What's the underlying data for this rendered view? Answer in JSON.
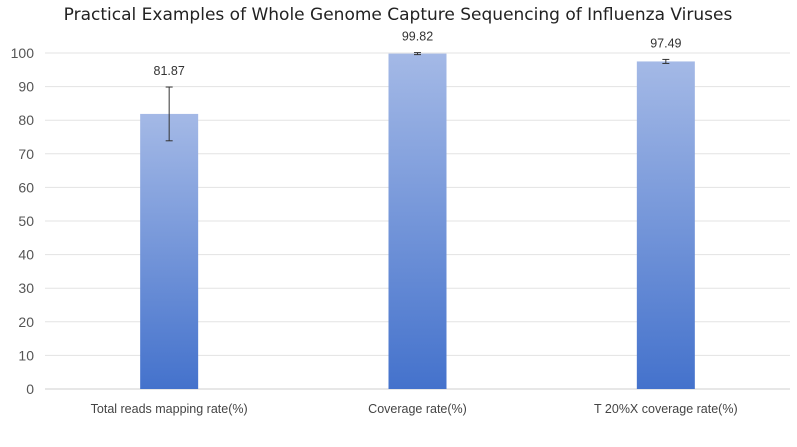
{
  "chart_data": {
    "type": "bar",
    "title": "Practical Examples of Whole Genome Capture Sequencing of Influenza Viruses",
    "xlabel": "",
    "ylabel": "",
    "categories": [
      "Total reads mapping rate(%)",
      "Coverage rate(%)",
      "T 20%X coverage rate(%)"
    ],
    "values": [
      81.87,
      99.82,
      97.49
    ],
    "data_labels": [
      "81.87",
      "99.82",
      "97.49"
    ],
    "error": [
      8,
      0.3,
      0.6
    ],
    "ylim": [
      0,
      100
    ],
    "yticks": [
      0,
      10,
      20,
      30,
      40,
      50,
      60,
      70,
      80,
      90,
      100
    ],
    "grid": true,
    "legend": "none",
    "colors": {
      "bar_top": "#a4b9e6",
      "bar_bottom": "#4472cc"
    }
  }
}
